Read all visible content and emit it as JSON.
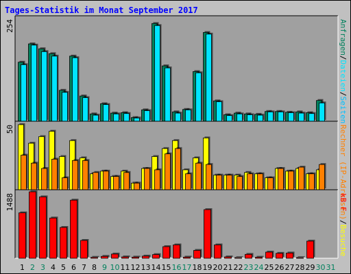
{
  "colors": {
    "page_bg": "#c0c0c0",
    "panel_bg": "#a0a0a0",
    "title": "#0000ff",
    "hits": "#00805c",
    "files": "#00e4ff",
    "pages": "#00c0ff",
    "sites": "#ff8000",
    "visits": "#ffff00",
    "kbytes": "#ff0000",
    "day_label": "#000000",
    "weekend_label": "#00805c"
  },
  "chart_data": {
    "type": "bar",
    "title": "Tages-Statistik im Monat September 2017",
    "categories": [
      "1",
      "2",
      "3",
      "4",
      "5",
      "6",
      "7",
      "8",
      "9",
      "10",
      "11",
      "12",
      "13",
      "14",
      "15",
      "16",
      "17",
      "18",
      "19",
      "20",
      "21",
      "22",
      "23",
      "24",
      "25",
      "26",
      "27",
      "28",
      "29",
      "30",
      "31"
    ],
    "weekend_days": [
      "2",
      "3",
      "9",
      "10",
      "16",
      "17",
      "23",
      "24",
      "30",
      "31"
    ],
    "grid": true,
    "panels": [
      {
        "id": "top",
        "ymax_label": "254",
        "ylim": [
          0,
          254
        ],
        "right_label_parts": [
          {
            "text": "Anfragen",
            "color_key": "hits"
          },
          {
            "text": "/",
            "color_key": "day_label"
          },
          {
            "text": "Dateien",
            "color_key": "files"
          },
          {
            "text": "/",
            "color_key": "day_label"
          },
          {
            "text": "Seiten",
            "color_key": "pages"
          }
        ],
        "series": [
          {
            "name": "Anfragen",
            "color_key": "hits",
            "values": [
              145,
              190,
              178,
              166,
              76,
              160,
              62,
              18,
              43,
              20,
              21,
              9,
              28,
              240,
              136,
              23,
              29,
              122,
              218,
              50,
              16,
              20,
              18,
              17,
              24,
              24,
              22,
              23,
              21,
              51,
              0
            ]
          },
          {
            "name": "Dateien",
            "color_key": "files",
            "values": [
              139,
              187,
              171,
              160,
              71,
              156,
              58,
              15,
              41,
              18,
              19,
              8,
              26,
              235,
              131,
              20,
              28,
              119,
              214,
              48,
              14,
              18,
              16,
              15,
              23,
              23,
              21,
              20,
              19,
              45,
              0
            ]
          }
        ]
      },
      {
        "id": "middle",
        "ymax_label": "50",
        "ylim": [
          0,
          50
        ],
        "right_label_parts": [
          {
            "text": "Rechner (IP-Adressen)",
            "color_key": "sites"
          },
          {
            "text": "/",
            "color_key": "day_label"
          },
          {
            "text": "Besuche",
            "color_key": "visits"
          }
        ],
        "series": [
          {
            "name": "Besuche",
            "color_key": "visits",
            "values": [
              49,
              35,
              40,
              44,
              25,
              37,
              24,
              12,
              14,
              10,
              14,
              5,
              16,
              25,
              31,
              37,
              15,
              24,
              39,
              11,
              11,
              11,
              13,
              12,
              9,
              16,
              14,
              16,
              12,
              15,
              0
            ]
          },
          {
            "name": "Rechner (IP-Adressen)",
            "color_key": "sites",
            "values": [
              26,
              20,
              16,
              23,
              9,
              22,
              22,
              13,
              14,
              10,
              13,
              5,
              16,
              15,
              27,
              31,
              12,
              20,
              19,
              11,
              11,
              10,
              12,
              12,
              9,
              16,
              14,
              17,
              12,
              19,
              0
            ]
          }
        ]
      },
      {
        "id": "bottom",
        "ymax_label": "1488",
        "ylim": [
          0,
          1488
        ],
        "right_label_parts": [
          {
            "text": "kB F",
            "color_key": "kbytes"
          }
        ],
        "series": [
          {
            "name": "kB F",
            "color_key": "kbytes",
            "values": [
              1017,
              1488,
              1375,
              901,
              690,
              1301,
              399,
              20,
              42,
              94,
              30,
              25,
              48,
              82,
              260,
              299,
              25,
              176,
              1089,
              299,
              30,
              15,
              87,
              22,
              138,
              110,
              117,
              15,
              384,
              0,
              0
            ]
          }
        ]
      }
    ]
  }
}
